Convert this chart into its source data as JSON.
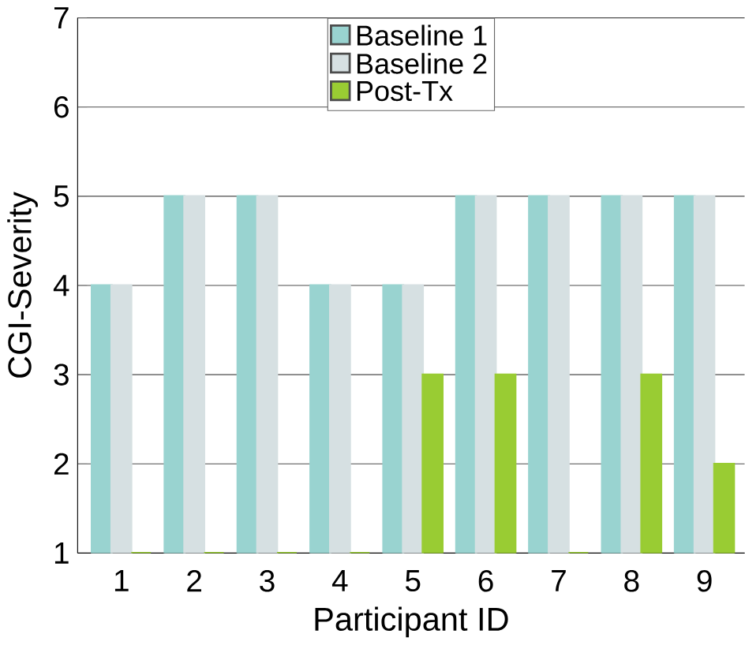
{
  "chart_data": {
    "type": "bar",
    "xlabel": "Participant ID",
    "ylabel": "CGI-Severity",
    "categories": [
      "1",
      "2",
      "3",
      "4",
      "5",
      "6",
      "7",
      "8",
      "9"
    ],
    "series": [
      {
        "name": "Baseline 1",
        "color": "#99d3d0",
        "values": [
          4,
          5,
          5,
          4,
          4,
          5,
          5,
          5,
          5
        ]
      },
      {
        "name": "Baseline 2",
        "color": "#d6e0e2",
        "values": [
          4,
          5,
          5,
          4,
          4,
          5,
          5,
          5,
          5
        ]
      },
      {
        "name": "Post-Tx",
        "color": "#99cc33",
        "values": [
          1,
          1,
          1,
          1,
          3,
          3,
          1,
          3,
          2
        ]
      }
    ],
    "ylim": [
      1,
      7
    ],
    "yticks": [
      1,
      2,
      3,
      4,
      5,
      6,
      7
    ],
    "grid": "y",
    "legend": "top"
  }
}
